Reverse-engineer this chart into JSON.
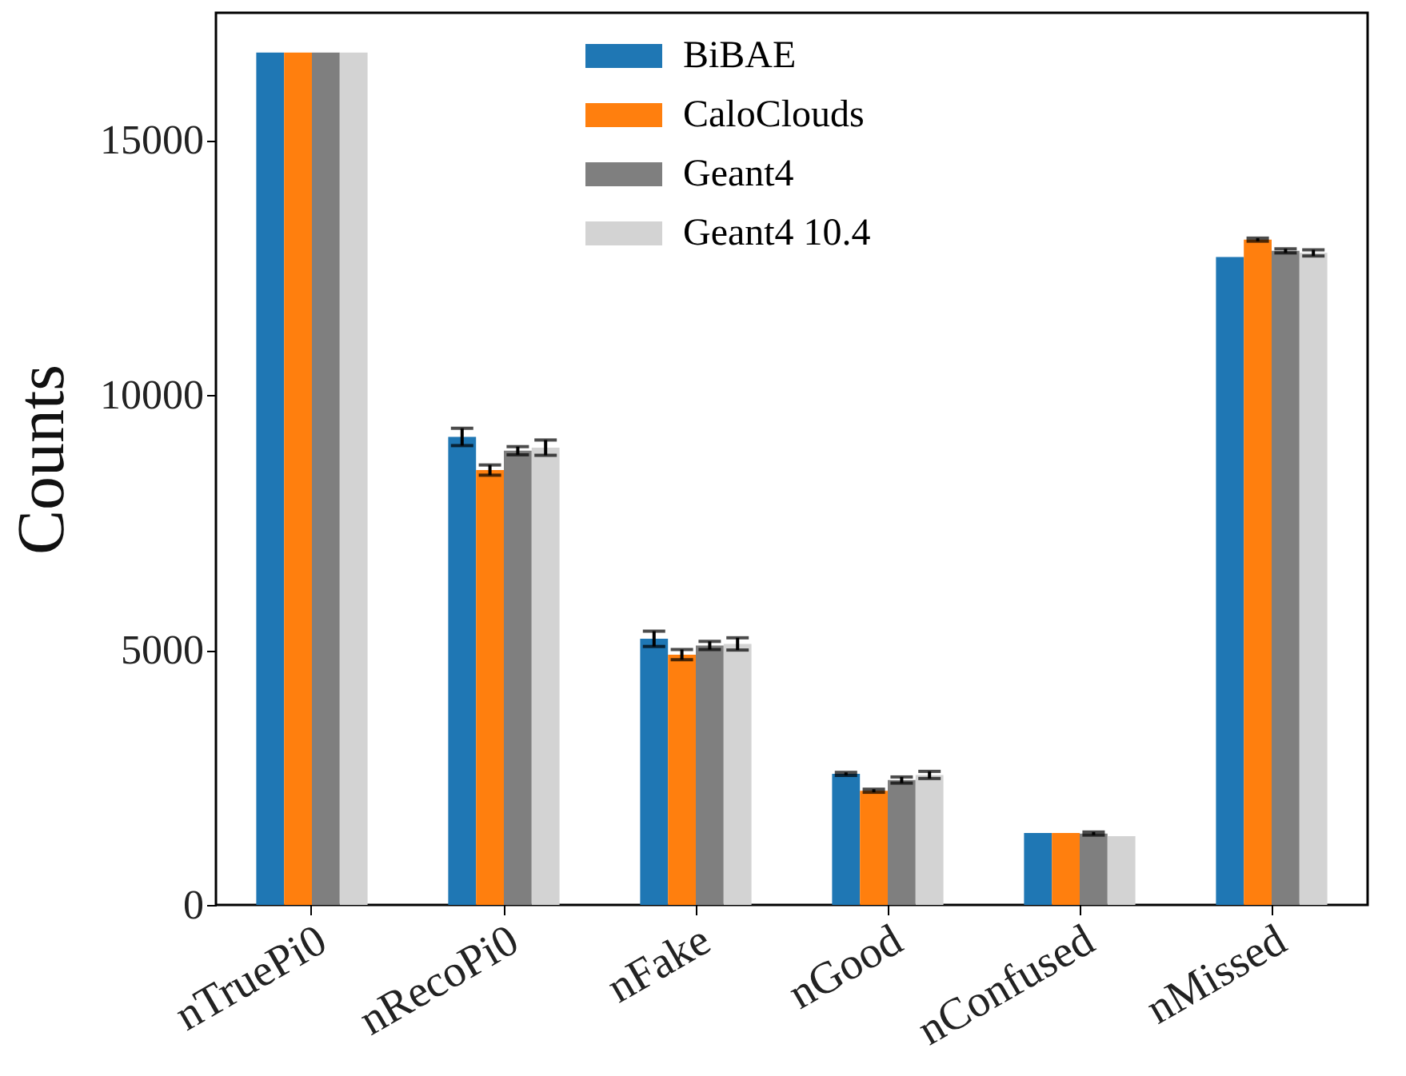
{
  "chart_data": {
    "type": "bar",
    "ylabel": "Counts",
    "categories": [
      "nTruePi0",
      "nRecoPi0",
      "nFake",
      "nGood",
      "nConfused",
      "nMissed"
    ],
    "series": [
      {
        "name": "BiBAE",
        "color": "#1f77b4",
        "values": [
          16720,
          9180,
          5220,
          2570,
          1410,
          12710
        ],
        "errors": [
          null,
          170,
          150,
          30,
          null,
          null
        ]
      },
      {
        "name": "CaloClouds",
        "color": "#ff7f0e",
        "values": [
          16720,
          8530,
          4910,
          2240,
          1410,
          13050
        ],
        "errors": [
          null,
          100,
          100,
          30,
          null,
          30
        ]
      },
      {
        "name": "Geant4",
        "color": "#7f7f7f",
        "values": [
          16720,
          8910,
          5090,
          2450,
          1400,
          12830
        ],
        "errors": [
          null,
          80,
          80,
          60,
          30,
          40
        ]
      },
      {
        "name": "Geant4 10.4",
        "color": "#d3d3d3",
        "values": [
          16720,
          8970,
          5120,
          2550,
          1350,
          12790
        ],
        "errors": [
          null,
          150,
          120,
          70,
          null,
          60
        ]
      }
    ],
    "ylim": [
      0,
      17500
    ],
    "yticks": [
      0,
      5000,
      10000,
      15000
    ],
    "grid": false,
    "legend": "top"
  }
}
